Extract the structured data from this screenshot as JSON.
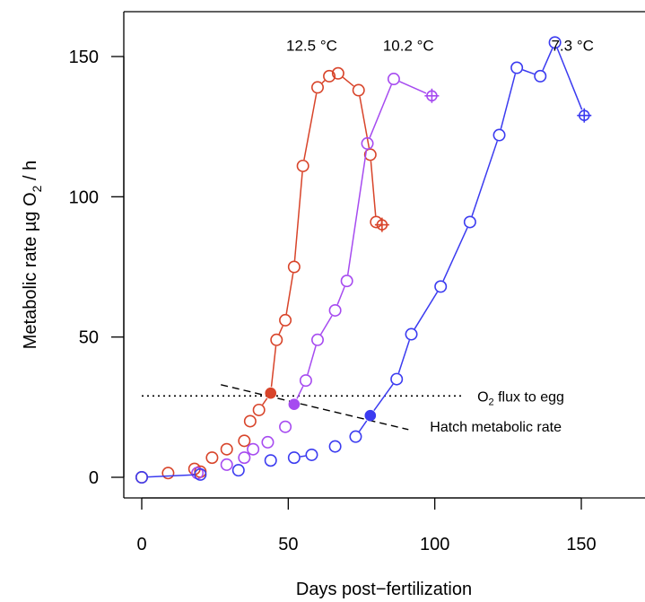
{
  "chart_data": {
    "type": "scatter",
    "xlabel": "Days post−fertilization",
    "ylabel_main": "Metabolic rate µg O",
    "ylabel_sub": "2",
    "ylabel_tail": " / h",
    "xlim": [
      -10,
      172
    ],
    "ylim": [
      -5,
      166
    ],
    "xticks": [
      "0",
      "50",
      "100",
      "150"
    ],
    "yticks": [
      "0",
      "50",
      "100",
      "150"
    ],
    "series": [
      {
        "name": "12.5 °C",
        "color": "#d8442a",
        "x": [
          0,
          9,
          18,
          20,
          24,
          29,
          35,
          37,
          40,
          44,
          46,
          49,
          52,
          55,
          60,
          64,
          67,
          74,
          78,
          80
        ],
        "y": [
          0,
          1.5,
          3,
          2,
          7,
          10,
          13,
          20,
          24,
          30,
          49,
          56,
          75,
          111,
          139,
          143,
          144,
          138,
          115,
          91
        ],
        "connected_from_index": 8,
        "hatch_index": 9,
        "end_marker": {
          "x": 82,
          "y": 90
        }
      },
      {
        "name": "10.2 °C",
        "color": "#a64bf0",
        "x": [
          19,
          29,
          35,
          38,
          43,
          49,
          52,
          56,
          60,
          66,
          70,
          77,
          86
        ],
        "y": [
          1.5,
          4.5,
          7,
          10,
          12.5,
          18,
          26,
          34.5,
          49,
          59.5,
          70,
          119,
          142
        ],
        "connected_from_index": 6,
        "hatch_index": 6,
        "end_marker": {
          "x": 99,
          "y": 136
        }
      },
      {
        "name": "7.3 °C",
        "color": "#3b3bf0",
        "x": [
          0,
          20,
          33,
          44,
          52,
          58,
          66,
          73,
          78,
          87,
          92,
          102,
          112,
          122,
          128,
          136,
          141
        ],
        "y": [
          0,
          1,
          2.5,
          6,
          7,
          8,
          11,
          14.5,
          22,
          35,
          51,
          68,
          91,
          122,
          146,
          143,
          155
        ],
        "connected_from_index": 0,
        "connected_pairs": [
          [
            0,
            1
          ],
          [
            4,
            5
          ],
          [
            7,
            8
          ],
          [
            8,
            9
          ],
          [
            9,
            10
          ],
          [
            10,
            11
          ],
          [
            11,
            12
          ],
          [
            12,
            13
          ],
          [
            13,
            14
          ],
          [
            14,
            15
          ],
          [
            15,
            16
          ]
        ],
        "hatch_index": 8,
        "end_marker": {
          "x": 151,
          "y": 129
        }
      }
    ],
    "series_labels": [
      {
        "text": "12.5 °C",
        "x": 58,
        "y": 154
      },
      {
        "text": "10.2 °C",
        "x": 91,
        "y": 154
      },
      {
        "text": "7.3 °C",
        "x": 147,
        "y": 154
      }
    ],
    "o2_flux": {
      "y": 29,
      "x_start": 0,
      "x_end": 109,
      "label_main": "O",
      "label_sub": "2",
      "label_tail": " flux to egg"
    },
    "hatch_line": {
      "x_start": 27,
      "y_start": 33,
      "x_end": 91,
      "y_end": 17,
      "label": "Hatch metabolic rate"
    }
  }
}
